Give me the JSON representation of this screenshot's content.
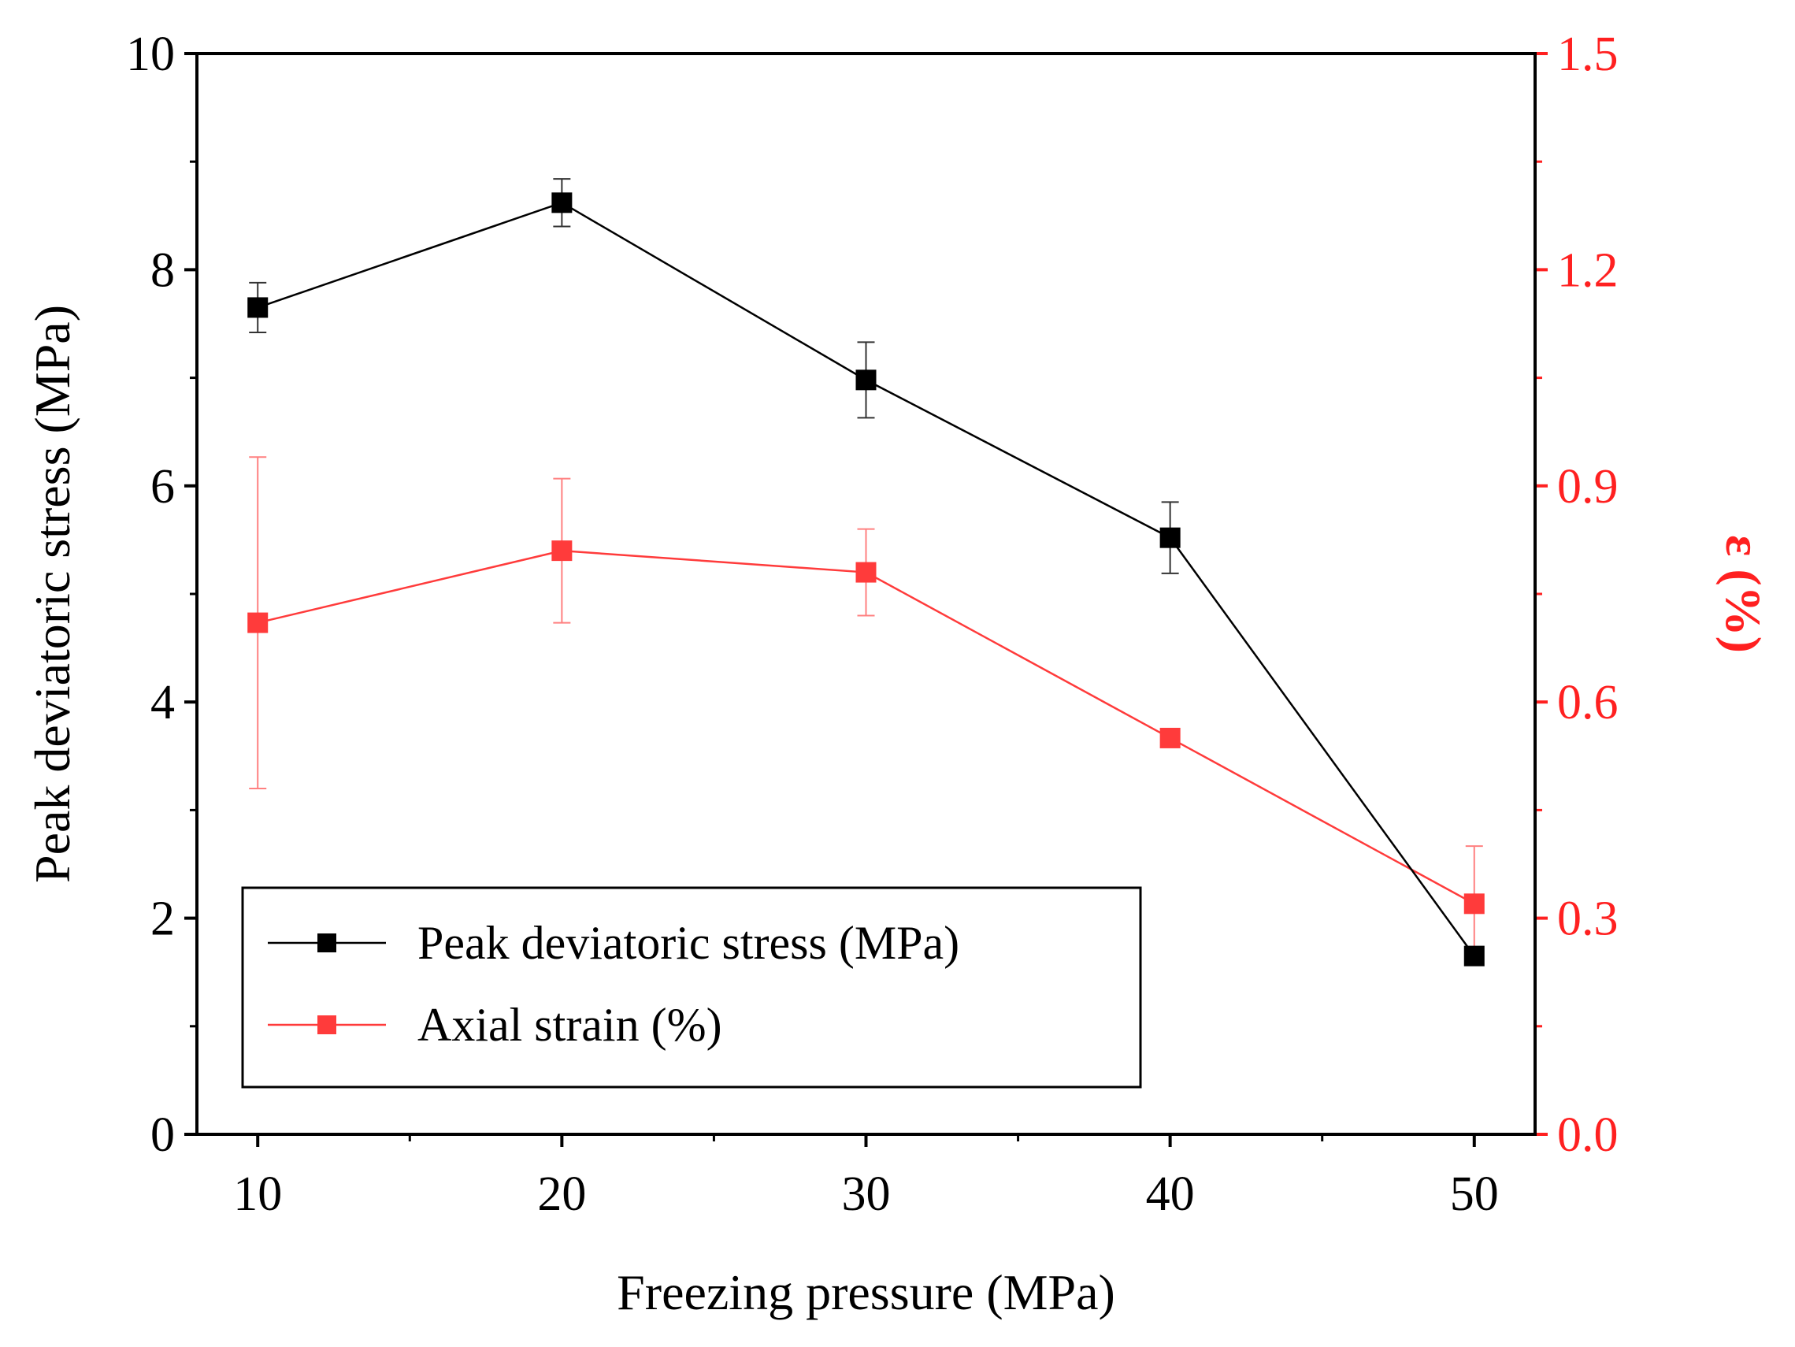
{
  "colors": {
    "left_series": "#000000",
    "right_series": "#ff3b3b",
    "right_axis": "#ff2020"
  },
  "chart_data": {
    "type": "line",
    "title": "",
    "xlabel": "Freezing pressure (MPa)",
    "ylabel_left": "Peak deviatoric stress (MPa)",
    "ylabel_right": "ε (%)",
    "x": [
      10,
      20,
      30,
      40,
      50
    ],
    "xlim": [
      8,
      52
    ],
    "x_ticks": [
      "10",
      "20",
      "30",
      "40",
      "50"
    ],
    "ylim_left": [
      0,
      10
    ],
    "y_ticks_left": [
      "0",
      "2",
      "4",
      "6",
      "8",
      "10"
    ],
    "ylim_right": [
      0.0,
      1.5
    ],
    "y_ticks_right": [
      "0.0",
      "0.3",
      "0.6",
      "0.9",
      "1.2",
      "1.5"
    ],
    "grid": false,
    "legend_position": "bottom-left",
    "series": [
      {
        "name": "Peak deviatoric stress (MPa)",
        "axis": "left",
        "marker": "square",
        "values": [
          7.65,
          8.62,
          6.98,
          5.52,
          1.65
        ],
        "errors": [
          0.23,
          0.22,
          0.35,
          0.33,
          0.07
        ]
      },
      {
        "name": "Axial strain (%)",
        "axis": "right",
        "marker": "square",
        "values": [
          0.71,
          0.81,
          0.78,
          0.55,
          0.32
        ],
        "errors": [
          0.23,
          0.1,
          0.06,
          0.0,
          0.08
        ]
      }
    ]
  }
}
